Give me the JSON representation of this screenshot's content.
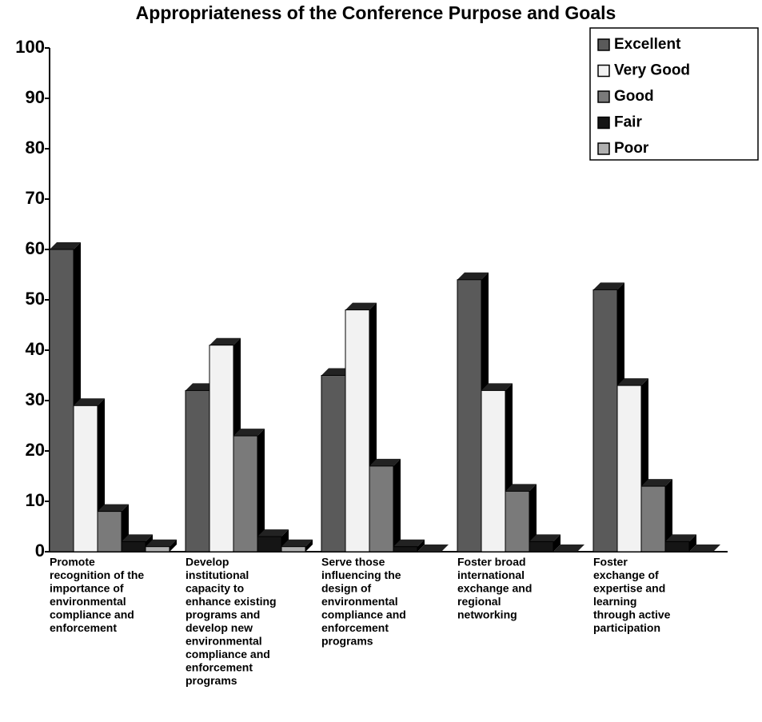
{
  "chart_data": {
    "type": "bar3d",
    "title": "Appropriateness of the Conference Purpose and Goals",
    "categories": [
      [
        "Promote",
        "recognition of the",
        "importance of",
        "environmental",
        "compliance and",
        "enforcement"
      ],
      [
        "Develop",
        "institutional",
        "capacity to",
        "enhance existing",
        "programs and",
        "develop new",
        "environmental",
        "compliance and",
        "enforcement",
        "programs"
      ],
      [
        "Serve those",
        "influencing the",
        "design of",
        "environmental",
        "compliance and",
        "enforcement",
        "programs"
      ],
      [
        "Foster broad",
        "international",
        "exchange and",
        "regional",
        "networking"
      ],
      [
        "Foster",
        "exchange of",
        "expertise and",
        "learning",
        "through active",
        "participation"
      ]
    ],
    "series": [
      {
        "name": "Excellent",
        "color": "#5a5a5a",
        "values": [
          60,
          32,
          35,
          54,
          52
        ]
      },
      {
        "name": "Very Good",
        "color": "#f2f2f2",
        "values": [
          29,
          41,
          48,
          32,
          33
        ]
      },
      {
        "name": "Good",
        "color": "#7a7a7a",
        "values": [
          8,
          23,
          17,
          12,
          13
        ]
      },
      {
        "name": "Fair",
        "color": "#151515",
        "values": [
          2,
          3,
          1,
          2,
          2
        ]
      },
      {
        "name": "Poor",
        "color": "#b0b0b0",
        "values": [
          1,
          1,
          0,
          0,
          0
        ]
      }
    ],
    "ylim": [
      0,
      100
    ],
    "yticks": [
      0,
      10,
      20,
      30,
      40,
      50,
      60,
      70,
      80,
      90,
      100
    ],
    "legend": "top-right"
  }
}
